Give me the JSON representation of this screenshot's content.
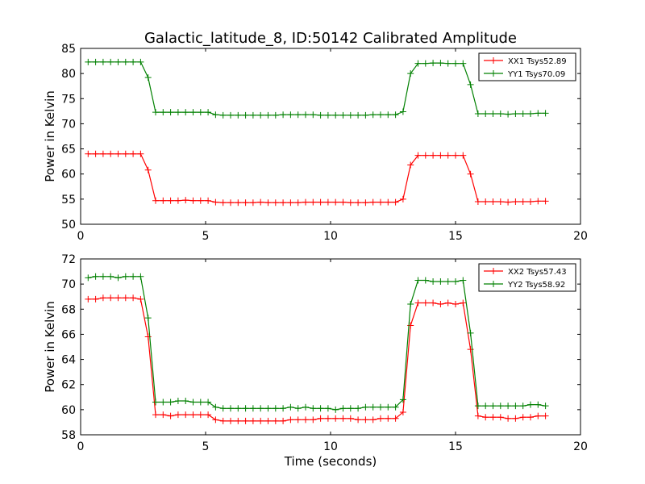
{
  "figure": {
    "title": "Galactic_latitude_8, ID:50142 Calibrated Amplitude",
    "xlabel": "Time (seconds)"
  },
  "chart_data": [
    {
      "type": "line",
      "title": "Galactic_latitude_8, ID:50142 Calibrated Amplitude",
      "xlabel": "",
      "ylabel": "Power in Kelvin",
      "xlim": [
        0,
        20
      ],
      "ylim": [
        50,
        85
      ],
      "xticks": [
        0,
        5,
        10,
        15,
        20
      ],
      "yticks": [
        50,
        55,
        60,
        65,
        70,
        75,
        80,
        85
      ],
      "grid": false,
      "legend": "top-right",
      "x": [
        0.3,
        0.6,
        0.9,
        1.2,
        1.5,
        1.8,
        2.1,
        2.4,
        2.7,
        3.0,
        3.3,
        3.6,
        3.9,
        4.2,
        4.5,
        4.8,
        5.1,
        5.4,
        5.7,
        6.0,
        6.3,
        6.6,
        6.9,
        7.2,
        7.5,
        7.8,
        8.1,
        8.4,
        8.7,
        9.0,
        9.3,
        9.6,
        9.9,
        10.2,
        10.5,
        10.8,
        11.1,
        11.4,
        11.7,
        12.0,
        12.3,
        12.6,
        12.9,
        13.2,
        13.5,
        13.8,
        14.1,
        14.4,
        14.7,
        15.0,
        15.3,
        15.6,
        15.9,
        16.2,
        16.5,
        16.8,
        17.1,
        17.4,
        17.7,
        18.0,
        18.3,
        18.6
      ],
      "series": [
        {
          "name": "XX1 Tsys52.89",
          "color": "#ff0000",
          "values": [
            64.0,
            64.0,
            64.0,
            64.0,
            64.0,
            64.0,
            64.0,
            64.0,
            60.8,
            54.7,
            54.7,
            54.7,
            54.7,
            54.8,
            54.7,
            54.7,
            54.7,
            54.4,
            54.3,
            54.3,
            54.3,
            54.3,
            54.3,
            54.4,
            54.3,
            54.3,
            54.3,
            54.3,
            54.3,
            54.4,
            54.4,
            54.4,
            54.4,
            54.4,
            54.4,
            54.3,
            54.3,
            54.3,
            54.4,
            54.4,
            54.4,
            54.4,
            55.0,
            61.8,
            63.7,
            63.7,
            63.7,
            63.7,
            63.7,
            63.7,
            63.7,
            60.0,
            54.5,
            54.5,
            54.5,
            54.5,
            54.4,
            54.5,
            54.5,
            54.5,
            54.6,
            54.6
          ]
        },
        {
          "name": "YY1 Tsys70.09",
          "color": "#008000",
          "values": [
            82.3,
            82.3,
            82.3,
            82.3,
            82.3,
            82.3,
            82.3,
            82.3,
            79.2,
            72.3,
            72.3,
            72.3,
            72.3,
            72.3,
            72.3,
            72.3,
            72.3,
            71.8,
            71.7,
            71.7,
            71.7,
            71.7,
            71.7,
            71.7,
            71.7,
            71.7,
            71.8,
            71.8,
            71.8,
            71.8,
            71.8,
            71.7,
            71.7,
            71.7,
            71.7,
            71.7,
            71.7,
            71.7,
            71.8,
            71.8,
            71.8,
            71.8,
            72.4,
            80.0,
            82.0,
            82.0,
            82.1,
            82.1,
            82.0,
            82.0,
            82.0,
            77.8,
            72.0,
            72.0,
            72.0,
            72.0,
            71.9,
            72.0,
            72.0,
            72.0,
            72.1,
            72.1
          ]
        }
      ]
    },
    {
      "type": "line",
      "title": "",
      "xlabel": "Time (seconds)",
      "ylabel": "Power in Kelvin",
      "xlim": [
        0,
        20
      ],
      "ylim": [
        58,
        72
      ],
      "xticks": [
        0,
        5,
        10,
        15,
        20
      ],
      "yticks": [
        58,
        60,
        62,
        64,
        66,
        68,
        70,
        72
      ],
      "grid": false,
      "legend": "top-right",
      "x": [
        0.3,
        0.6,
        0.9,
        1.2,
        1.5,
        1.8,
        2.1,
        2.4,
        2.7,
        3.0,
        3.3,
        3.6,
        3.9,
        4.2,
        4.5,
        4.8,
        5.1,
        5.4,
        5.7,
        6.0,
        6.3,
        6.6,
        6.9,
        7.2,
        7.5,
        7.8,
        8.1,
        8.4,
        8.7,
        9.0,
        9.3,
        9.6,
        9.9,
        10.2,
        10.5,
        10.8,
        11.1,
        11.4,
        11.7,
        12.0,
        12.3,
        12.6,
        12.9,
        13.2,
        13.5,
        13.8,
        14.1,
        14.4,
        14.7,
        15.0,
        15.3,
        15.6,
        15.9,
        16.2,
        16.5,
        16.8,
        17.1,
        17.4,
        17.7,
        18.0,
        18.3,
        18.6
      ],
      "series": [
        {
          "name": "XX2 Tsys57.43",
          "color": "#ff0000",
          "values": [
            68.8,
            68.8,
            68.9,
            68.9,
            68.9,
            68.9,
            68.9,
            68.8,
            65.8,
            59.6,
            59.6,
            59.5,
            59.6,
            59.6,
            59.6,
            59.6,
            59.6,
            59.2,
            59.1,
            59.1,
            59.1,
            59.1,
            59.1,
            59.1,
            59.1,
            59.1,
            59.1,
            59.2,
            59.2,
            59.2,
            59.2,
            59.3,
            59.3,
            59.3,
            59.3,
            59.3,
            59.2,
            59.2,
            59.2,
            59.3,
            59.3,
            59.3,
            59.8,
            66.7,
            68.5,
            68.5,
            68.5,
            68.4,
            68.5,
            68.4,
            68.5,
            64.8,
            59.5,
            59.4,
            59.4,
            59.4,
            59.3,
            59.3,
            59.4,
            59.4,
            59.5,
            59.5
          ]
        },
        {
          "name": "YY2 Tsys58.92",
          "color": "#008000",
          "values": [
            70.5,
            70.6,
            70.6,
            70.6,
            70.5,
            70.6,
            70.6,
            70.6,
            67.3,
            60.6,
            60.6,
            60.6,
            60.7,
            60.7,
            60.6,
            60.6,
            60.6,
            60.2,
            60.1,
            60.1,
            60.1,
            60.1,
            60.1,
            60.1,
            60.1,
            60.1,
            60.1,
            60.2,
            60.1,
            60.2,
            60.1,
            60.1,
            60.1,
            60.0,
            60.1,
            60.1,
            60.1,
            60.2,
            60.2,
            60.2,
            60.2,
            60.2,
            60.8,
            68.4,
            70.3,
            70.3,
            70.2,
            70.2,
            70.2,
            70.2,
            70.3,
            66.1,
            60.3,
            60.3,
            60.3,
            60.3,
            60.3,
            60.3,
            60.3,
            60.4,
            60.4,
            60.3
          ]
        }
      ]
    }
  ]
}
